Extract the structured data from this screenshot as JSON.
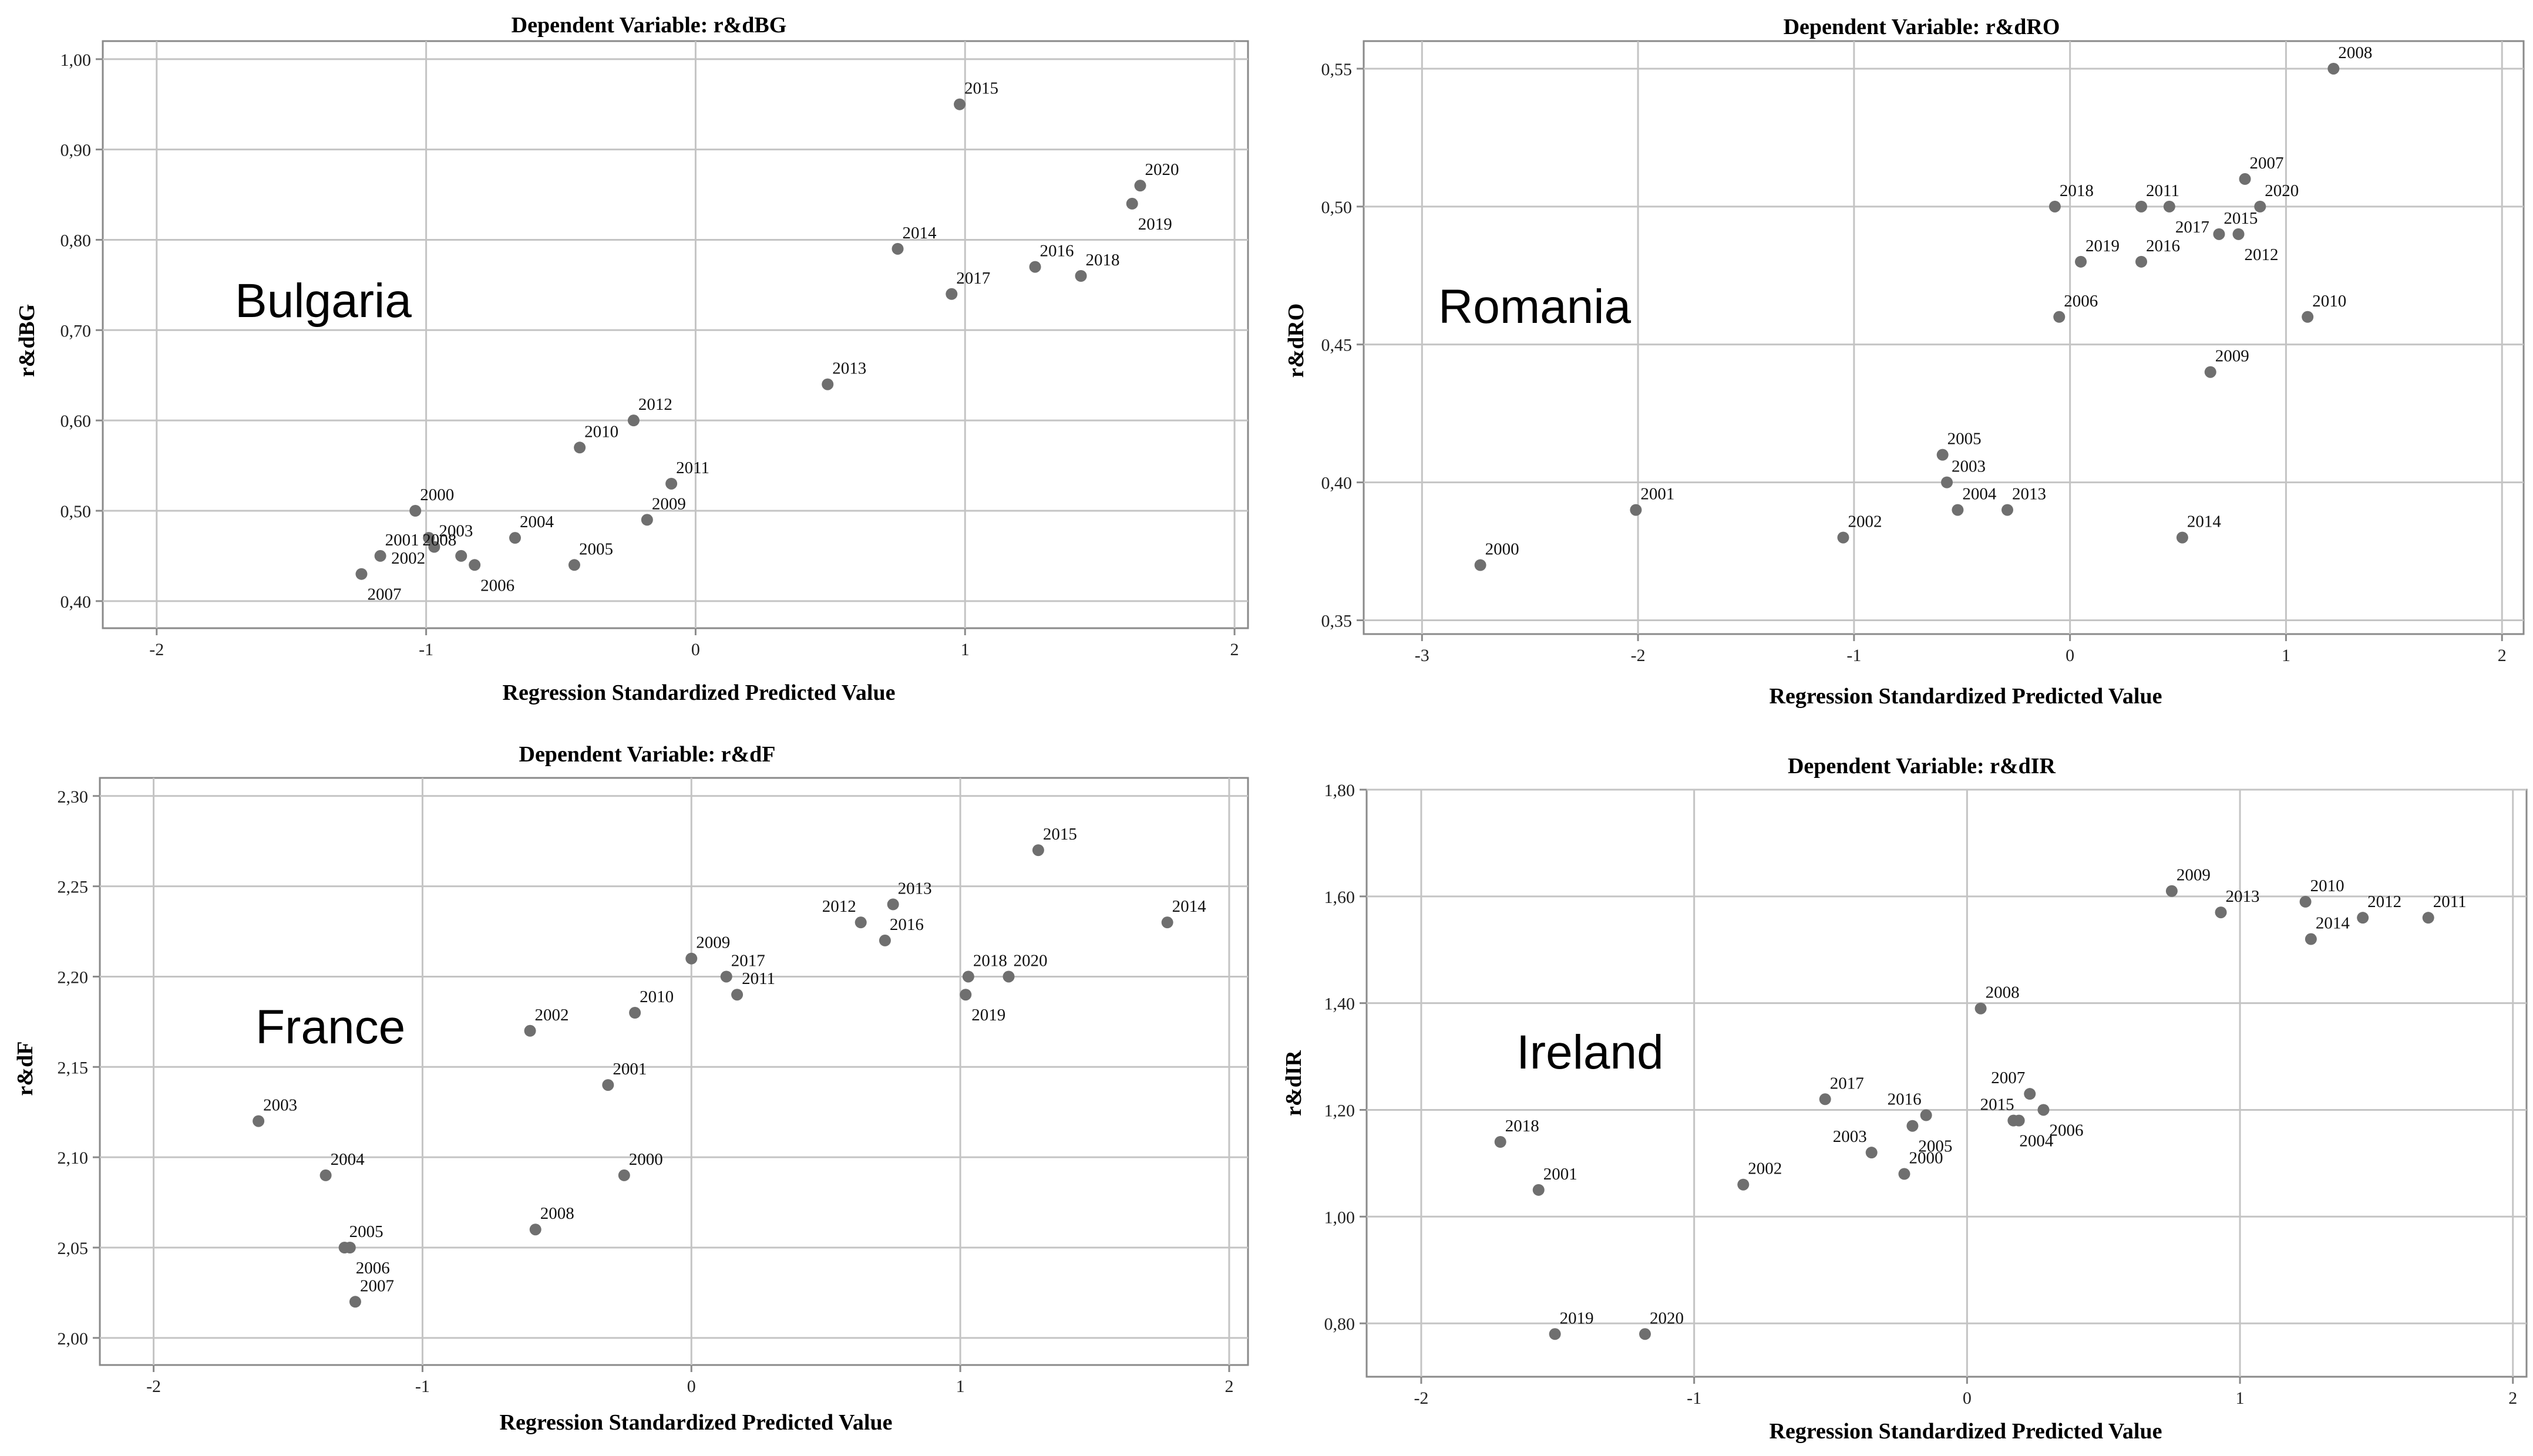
{
  "chart_data": [
    {
      "type": "scatter",
      "title": "Dependent Variable: r&dBG",
      "xlabel": "Regression Standardized Predicted Value",
      "ylabel": "r&dBG",
      "annotation": "Bulgaria",
      "xlim": [
        -2.2,
        2.05
      ],
      "ylim": [
        0.37,
        1.02
      ],
      "xticks": [
        -2,
        -1,
        0,
        1,
        2
      ],
      "xtick_labels": [
        "-2",
        "-1",
        "0",
        "1",
        "2"
      ],
      "yticks": [
        0.4,
        0.5,
        0.6,
        0.7,
        0.8,
        0.9,
        1.0
      ],
      "ytick_labels": [
        "0,40",
        "0,50",
        "0,60",
        "0,70",
        "0,80",
        "0,90",
        "1,00"
      ],
      "grid": true,
      "points": [
        {
          "label": "2000",
          "x": -1.04,
          "y": 0.5,
          "pos": "ur"
        },
        {
          "label": "2001",
          "x": -1.17,
          "y": 0.45,
          "pos": "ur"
        },
        {
          "label": "2002",
          "x": -0.99,
          "y": 0.47,
          "pos": "dl"
        },
        {
          "label": "2003",
          "x": -0.97,
          "y": 0.46,
          "pos": "ur"
        },
        {
          "label": "2004",
          "x": -0.67,
          "y": 0.47,
          "pos": "ur"
        },
        {
          "label": "2005",
          "x": -0.45,
          "y": 0.44,
          "pos": "ur"
        },
        {
          "label": "2006",
          "x": -0.82,
          "y": 0.44,
          "pos": "dr"
        },
        {
          "label": "2007",
          "x": -1.24,
          "y": 0.43,
          "pos": "dr"
        },
        {
          "label": "2008",
          "x": -0.87,
          "y": 0.45,
          "pos": "ul"
        },
        {
          "label": "2009",
          "x": -0.18,
          "y": 0.49,
          "pos": "ur"
        },
        {
          "label": "2010",
          "x": -0.43,
          "y": 0.57,
          "pos": "ur"
        },
        {
          "label": "2011",
          "x": -0.09,
          "y": 0.53,
          "pos": "ur"
        },
        {
          "label": "2012",
          "x": -0.23,
          "y": 0.6,
          "pos": "ur"
        },
        {
          "label": "2013",
          "x": 0.49,
          "y": 0.64,
          "pos": "ur"
        },
        {
          "label": "2014",
          "x": 0.75,
          "y": 0.79,
          "pos": "ur"
        },
        {
          "label": "2015",
          "x": 0.98,
          "y": 0.95,
          "pos": "ur"
        },
        {
          "label": "2016",
          "x": 1.26,
          "y": 0.77,
          "pos": "ur"
        },
        {
          "label": "2017",
          "x": 0.95,
          "y": 0.74,
          "pos": "ur"
        },
        {
          "label": "2018",
          "x": 1.43,
          "y": 0.76,
          "pos": "ur"
        },
        {
          "label": "2019",
          "x": 1.62,
          "y": 0.84,
          "pos": "dr"
        },
        {
          "label": "2020",
          "x": 1.65,
          "y": 0.86,
          "pos": "ur"
        }
      ]
    },
    {
      "type": "scatter",
      "title": "Dependent Variable: r&dRO",
      "xlabel": "Regression Standardized Predicted Value",
      "ylabel": "r&dRO",
      "annotation": "Romania",
      "xlim": [
        -3.27,
        2.1
      ],
      "ylim": [
        0.345,
        0.56
      ],
      "xticks": [
        -3,
        -2,
        -1,
        0,
        1,
        2
      ],
      "xtick_labels": [
        "-3",
        "-2",
        "-1",
        "0",
        "1",
        "2"
      ],
      "yticks": [
        0.35,
        0.4,
        0.45,
        0.5,
        0.55
      ],
      "ytick_labels": [
        "0,35",
        "0,40",
        "0,45",
        "0,50",
        "0,55"
      ],
      "grid": true,
      "points": [
        {
          "label": "2000",
          "x": -2.73,
          "y": 0.37,
          "pos": "ur"
        },
        {
          "label": "2001",
          "x": -2.01,
          "y": 0.39,
          "pos": "ur"
        },
        {
          "label": "2002",
          "x": -1.05,
          "y": 0.38,
          "pos": "ur"
        },
        {
          "label": "2003",
          "x": -0.57,
          "y": 0.4,
          "pos": "ur"
        },
        {
          "label": "2004",
          "x": -0.52,
          "y": 0.39,
          "pos": "ur"
        },
        {
          "label": "2005",
          "x": -0.59,
          "y": 0.41,
          "pos": "ur"
        },
        {
          "label": "2006",
          "x": -0.05,
          "y": 0.46,
          "pos": "ur"
        },
        {
          "label": "2007",
          "x": 0.81,
          "y": 0.51,
          "pos": "ur"
        },
        {
          "label": "2008",
          "x": 1.22,
          "y": 0.55,
          "pos": "ur"
        },
        {
          "label": "2009",
          "x": 0.65,
          "y": 0.44,
          "pos": "ur"
        },
        {
          "label": "2010",
          "x": 1.1,
          "y": 0.46,
          "pos": "ur"
        },
        {
          "label": "2011",
          "x": 0.33,
          "y": 0.5,
          "pos": "ur"
        },
        {
          "label": "2012",
          "x": 0.78,
          "y": 0.49,
          "pos": "dr"
        },
        {
          "label": "2013",
          "x": -0.29,
          "y": 0.39,
          "pos": "ur"
        },
        {
          "label": "2014",
          "x": 0.52,
          "y": 0.38,
          "pos": "ur"
        },
        {
          "label": "2015",
          "x": 0.69,
          "y": 0.49,
          "pos": "ur"
        },
        {
          "label": "2016",
          "x": 0.33,
          "y": 0.48,
          "pos": "ur"
        },
        {
          "label": "2017",
          "x": 0.46,
          "y": 0.5,
          "pos": "dr"
        },
        {
          "label": "2018",
          "x": -0.07,
          "y": 0.5,
          "pos": "ur"
        },
        {
          "label": "2019",
          "x": 0.05,
          "y": 0.48,
          "pos": "ur"
        },
        {
          "label": "2020",
          "x": 0.88,
          "y": 0.5,
          "pos": "ur"
        }
      ]
    },
    {
      "type": "scatter",
      "title": "Dependent Variable: r&dF",
      "xlabel": "Regression Standardized Predicted Value",
      "ylabel": "r&dF",
      "annotation": "France",
      "xlim": [
        -2.2,
        2.07
      ],
      "ylim": [
        1.985,
        2.31
      ],
      "xticks": [
        -2,
        -1,
        0,
        1,
        2
      ],
      "xtick_labels": [
        "-2",
        "-1",
        "0",
        "1",
        "2"
      ],
      "yticks": [
        2.0,
        2.05,
        2.1,
        2.15,
        2.2,
        2.25,
        2.3
      ],
      "ytick_labels": [
        "2,00",
        "2,05",
        "2,10",
        "2,15",
        "2,20",
        "2,25",
        "2,30"
      ],
      "grid": true,
      "points": [
        {
          "label": "2000",
          "x": -0.25,
          "y": 2.09,
          "pos": "ur"
        },
        {
          "label": "2001",
          "x": -0.31,
          "y": 2.14,
          "pos": "ur"
        },
        {
          "label": "2002",
          "x": -0.6,
          "y": 2.17,
          "pos": "ur"
        },
        {
          "label": "2003",
          "x": -1.61,
          "y": 2.12,
          "pos": "ur"
        },
        {
          "label": "2004",
          "x": -1.36,
          "y": 2.09,
          "pos": "ur"
        },
        {
          "label": "2005",
          "x": -1.29,
          "y": 2.05,
          "pos": "ur"
        },
        {
          "label": "2006",
          "x": -1.27,
          "y": 2.05,
          "pos": "dr"
        },
        {
          "label": "2007",
          "x": -1.25,
          "y": 2.02,
          "pos": "ur"
        },
        {
          "label": "2008",
          "x": -0.58,
          "y": 2.06,
          "pos": "ur"
        },
        {
          "label": "2009",
          "x": 0.0,
          "y": 2.21,
          "pos": "ur"
        },
        {
          "label": "2010",
          "x": -0.21,
          "y": 2.18,
          "pos": "ur"
        },
        {
          "label": "2011",
          "x": 0.17,
          "y": 2.19,
          "pos": "ur"
        },
        {
          "label": "2012",
          "x": 0.63,
          "y": 2.23,
          "pos": "ul"
        },
        {
          "label": "2013",
          "x": 0.75,
          "y": 2.24,
          "pos": "ur"
        },
        {
          "label": "2014",
          "x": 1.77,
          "y": 2.23,
          "pos": "ur"
        },
        {
          "label": "2015",
          "x": 1.29,
          "y": 2.27,
          "pos": "ur"
        },
        {
          "label": "2016",
          "x": 0.72,
          "y": 2.22,
          "pos": "ur"
        },
        {
          "label": "2017",
          "x": 0.13,
          "y": 2.2,
          "pos": "ur"
        },
        {
          "label": "2018",
          "x": 1.03,
          "y": 2.2,
          "pos": "ur"
        },
        {
          "label": "2019",
          "x": 1.02,
          "y": 2.19,
          "pos": "dr"
        },
        {
          "label": "2020",
          "x": 1.18,
          "y": 2.2,
          "pos": "ur"
        }
      ]
    },
    {
      "type": "scatter",
      "title": "Dependent Variable: r&dIR",
      "xlabel": "Regression Standardized Predicted Value",
      "ylabel": "r&dIR",
      "annotation": "Ireland",
      "xlim": [
        -2.2,
        2.05
      ],
      "ylim": [
        0.7,
        1.8
      ],
      "xticks": [
        -2,
        -1,
        0,
        1,
        2
      ],
      "xtick_labels": [
        "-2",
        "-1",
        "0",
        "1",
        "2"
      ],
      "yticks": [
        0.8,
        1.0,
        1.2,
        1.4,
        1.6,
        1.8
      ],
      "ytick_labels": [
        "0,80",
        "1,00",
        "1,20",
        "1,40",
        "1,60",
        "1,80"
      ],
      "grid": true,
      "points": [
        {
          "label": "2000",
          "x": -0.23,
          "y": 1.08,
          "pos": "ur"
        },
        {
          "label": "2001",
          "x": -1.57,
          "y": 1.05,
          "pos": "ur"
        },
        {
          "label": "2002",
          "x": -0.82,
          "y": 1.06,
          "pos": "ur"
        },
        {
          "label": "2003",
          "x": -0.35,
          "y": 1.12,
          "pos": "ul"
        },
        {
          "label": "2004",
          "x": 0.17,
          "y": 1.18,
          "pos": "dr"
        },
        {
          "label": "2005",
          "x": -0.2,
          "y": 1.17,
          "pos": "dr"
        },
        {
          "label": "2006",
          "x": 0.28,
          "y": 1.2,
          "pos": "dr"
        },
        {
          "label": "2007",
          "x": 0.23,
          "y": 1.23,
          "pos": "ul"
        },
        {
          "label": "2008",
          "x": 0.05,
          "y": 1.39,
          "pos": "ur"
        },
        {
          "label": "2009",
          "x": 0.75,
          "y": 1.61,
          "pos": "ur"
        },
        {
          "label": "2010",
          "x": 1.24,
          "y": 1.59,
          "pos": "ur"
        },
        {
          "label": "2011",
          "x": 1.69,
          "y": 1.56,
          "pos": "ur"
        },
        {
          "label": "2012",
          "x": 1.45,
          "y": 1.56,
          "pos": "ur"
        },
        {
          "label": "2013",
          "x": 0.93,
          "y": 1.57,
          "pos": "ur"
        },
        {
          "label": "2014",
          "x": 1.26,
          "y": 1.52,
          "pos": "ur"
        },
        {
          "label": "2015",
          "x": 0.19,
          "y": 1.18,
          "pos": "ul"
        },
        {
          "label": "2016",
          "x": -0.15,
          "y": 1.19,
          "pos": "ul"
        },
        {
          "label": "2017",
          "x": -0.52,
          "y": 1.22,
          "pos": "ur"
        },
        {
          "label": "2018",
          "x": -1.71,
          "y": 1.14,
          "pos": "ur"
        },
        {
          "label": "2019",
          "x": -1.51,
          "y": 0.78,
          "pos": "ur"
        },
        {
          "label": "2020",
          "x": -1.18,
          "y": 0.78,
          "pos": "ur"
        }
      ]
    }
  ]
}
